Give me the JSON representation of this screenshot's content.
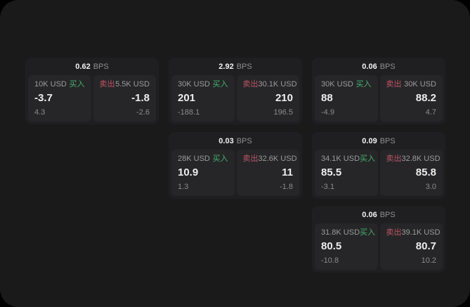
{
  "labels": {
    "bps_unit": "BPS",
    "buy": "买入",
    "sell": "卖出"
  },
  "colors": {
    "page_background": "#000000",
    "surface_background": "#1a1a1b",
    "card_background": "#1f1f21",
    "panel_background": "#262628",
    "buy_green": "#46b16c",
    "sell_red": "#bf5465",
    "primary_text": "#ededed",
    "secondary_text": "#9b9b9b"
  },
  "cards": [
    {
      "bps": "0.62",
      "buy": {
        "amount": "10K USD",
        "value": "-3.7",
        "sub": "4.3"
      },
      "sell": {
        "amount": "5.5K USD",
        "value": "-1.8",
        "sub": "-2.6"
      }
    },
    {
      "bps": "2.92",
      "buy": {
        "amount": "30K USD",
        "value": "201",
        "sub": "-188.1"
      },
      "sell": {
        "amount": "30.1K USD",
        "value": "210",
        "sub": "196.5"
      }
    },
    {
      "bps": "0.06",
      "buy": {
        "amount": "30K USD",
        "value": "88",
        "sub": "-4.9"
      },
      "sell": {
        "amount": "30K USD",
        "value": "88.2",
        "sub": "4.7"
      }
    },
    {
      "bps": "0.03",
      "buy": {
        "amount": "28K USD",
        "value": "10.9",
        "sub": "1.3"
      },
      "sell": {
        "amount": "32.6K USD",
        "value": "11",
        "sub": "-1.8"
      }
    },
    {
      "bps": "0.09",
      "buy": {
        "amount": "34.1K USD",
        "value": "85.5",
        "sub": "-3.1"
      },
      "sell": {
        "amount": "32.8K USD",
        "value": "85.8",
        "sub": "3.0"
      }
    },
    {
      "bps": "0.06",
      "buy": {
        "amount": "31.8K USD",
        "value": "80.5",
        "sub": "-10.8"
      },
      "sell": {
        "amount": "39.1K USD",
        "value": "80.7",
        "sub": "10.2"
      }
    }
  ]
}
